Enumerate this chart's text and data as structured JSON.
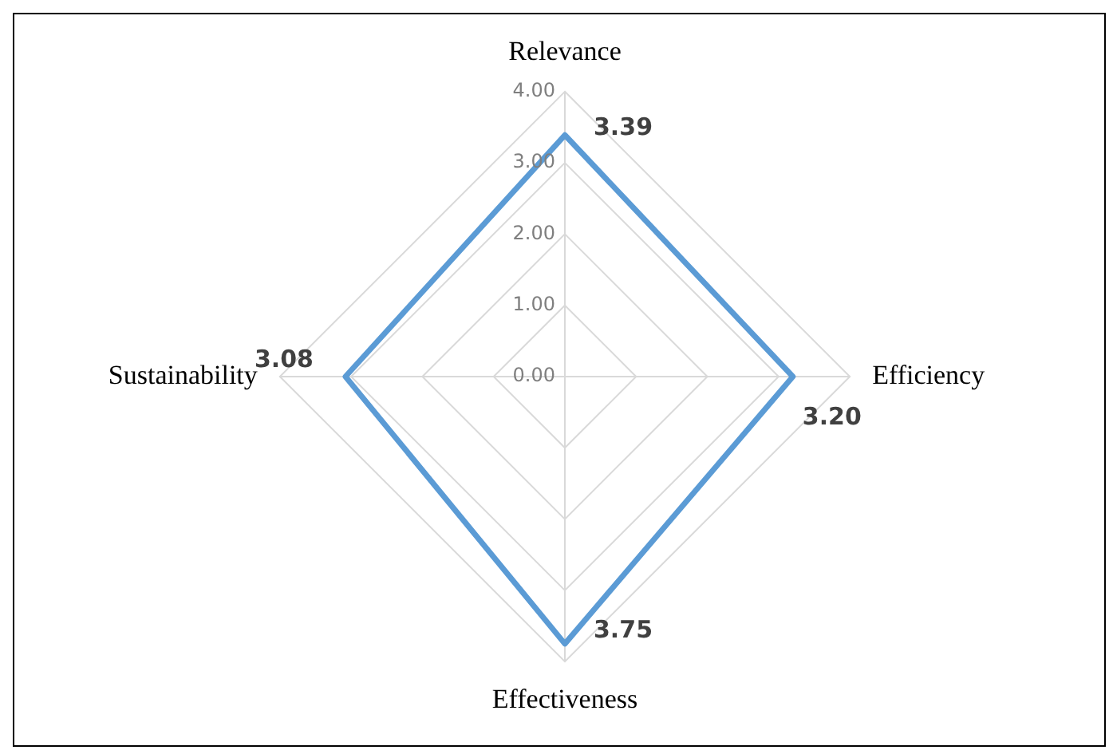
{
  "chart_data": {
    "type": "radar",
    "categories": [
      "Relevance",
      "Efficiency",
      "Effectiveness",
      "Sustainability"
    ],
    "series": [
      {
        "color": "#5b9bd5",
        "values": [
          3.39,
          3.2,
          3.75,
          3.08
        ],
        "value_labels": [
          "3.39",
          "3.20",
          "3.75",
          "3.08"
        ]
      }
    ],
    "ylim": [
      0,
      4
    ],
    "yticks": [
      {
        "value": 0,
        "label": "0.00"
      },
      {
        "value": 1,
        "label": "1.00"
      },
      {
        "value": 2,
        "label": "2.00"
      },
      {
        "value": 3,
        "label": "3.00"
      },
      {
        "value": 4,
        "label": "4.00"
      }
    ],
    "grid": true,
    "legend": false,
    "marker": "none",
    "line_style": "solid"
  }
}
